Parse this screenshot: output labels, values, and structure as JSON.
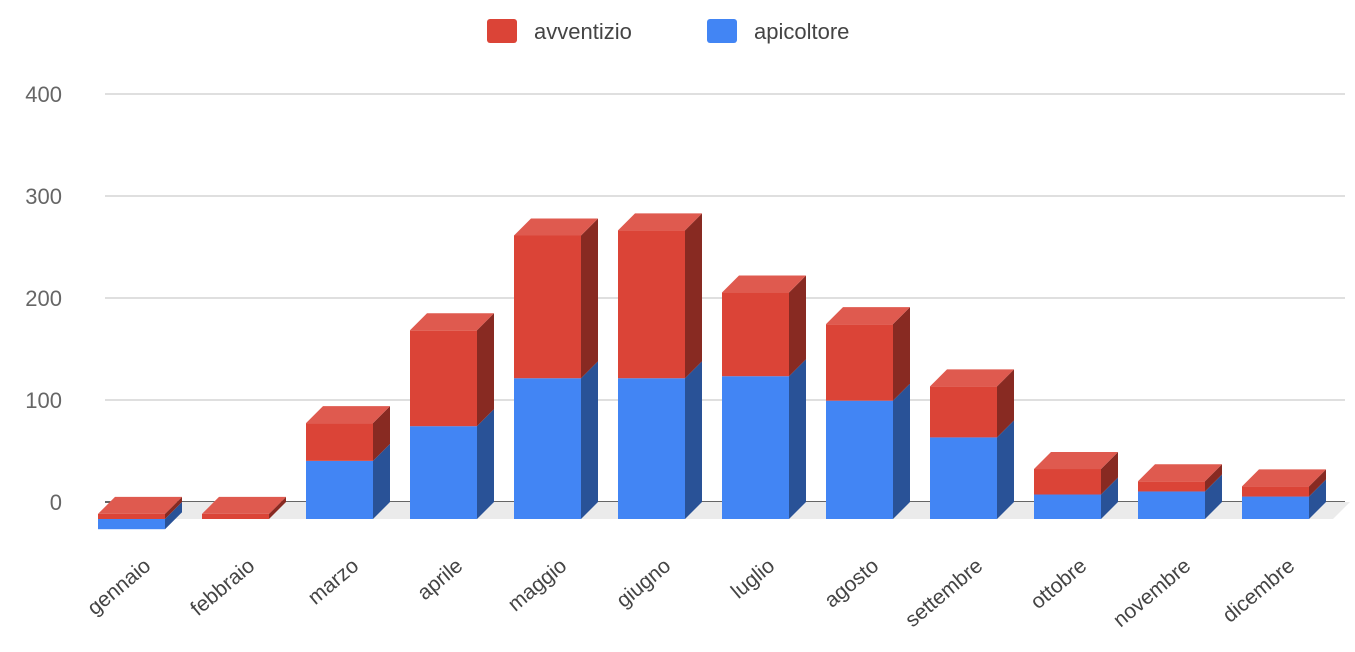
{
  "chart_data": {
    "type": "bar",
    "stacked": true,
    "style": "3d",
    "categories": [
      "gennaio",
      "febbraio",
      "marzo",
      "aprile",
      "maggio",
      "giugno",
      "luglio",
      "agosto",
      "settembre",
      "ottobre",
      "novembre",
      "dicembre"
    ],
    "series": [
      {
        "name": "apicoltore",
        "color": "#4285f4",
        "values": [
          -10,
          0,
          57,
          91,
          138,
          138,
          140,
          116,
          80,
          24,
          27,
          22
        ]
      },
      {
        "name": "avventizio",
        "color": "#db4437",
        "values": [
          5,
          5,
          37,
          94,
          140,
          145,
          82,
          75,
          50,
          25,
          10,
          10
        ]
      }
    ],
    "legend": {
      "position": "top",
      "order": [
        "avventizio",
        "apicoltore"
      ]
    },
    "yticks": [
      0,
      100,
      200,
      300,
      400
    ],
    "ylim": [
      0,
      400
    ],
    "grid": true,
    "title": "",
    "xlabel": "",
    "ylabel": ""
  }
}
